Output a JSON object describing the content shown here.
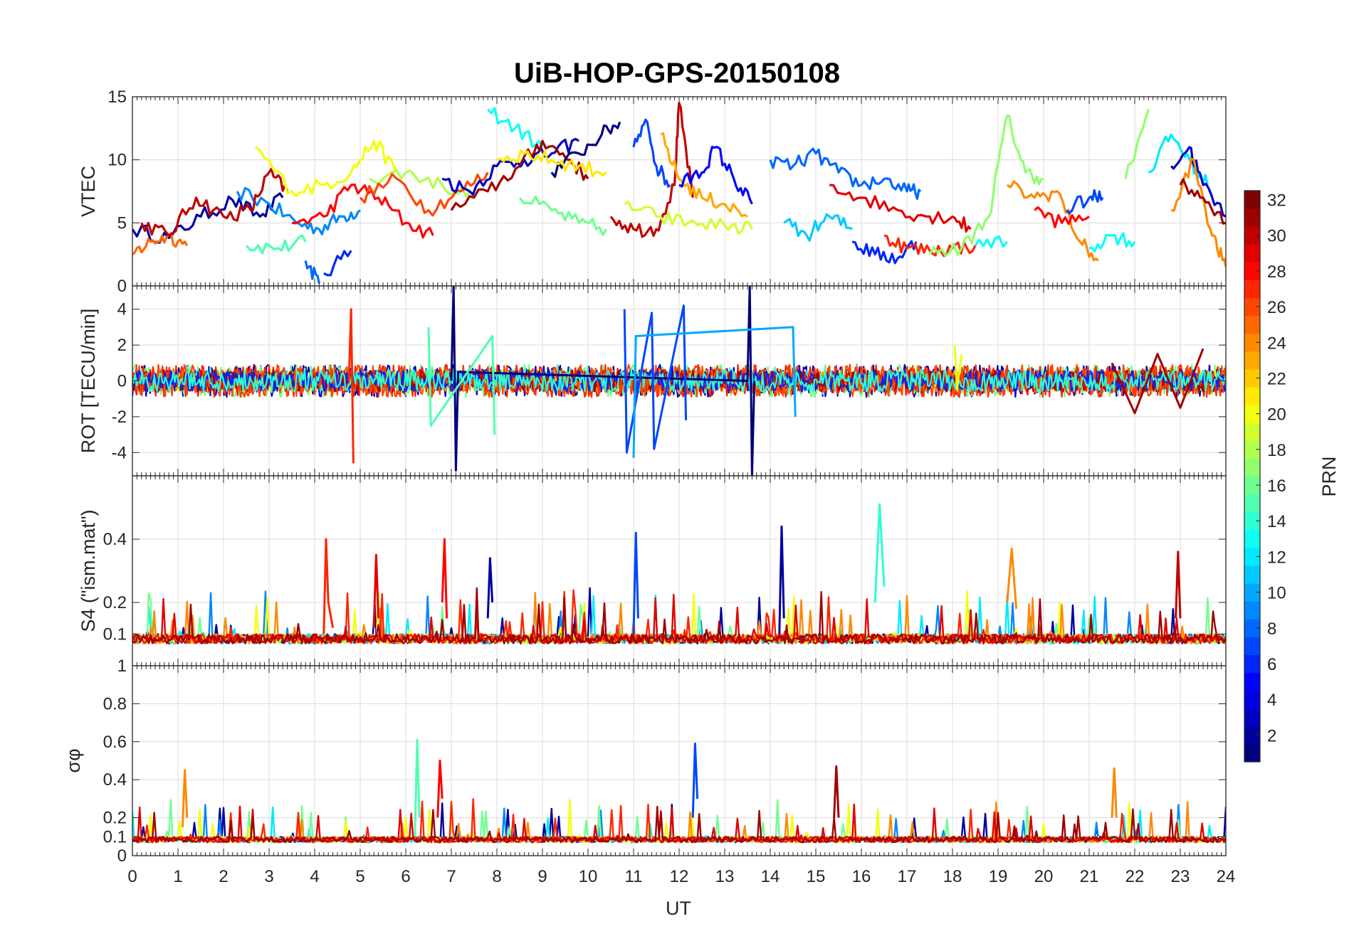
{
  "figure": {
    "title": "UiB-HOP-GPS-20150108",
    "xlabel": "UT",
    "x_ticks": [
      "0",
      "1",
      "2",
      "3",
      "4",
      "5",
      "6",
      "7",
      "8",
      "9",
      "10",
      "11",
      "12",
      "13",
      "14",
      "15",
      "16",
      "17",
      "18",
      "19",
      "20",
      "21",
      "22",
      "23",
      "24"
    ]
  },
  "colorbar": {
    "label": "PRN",
    "range": [
      1,
      32
    ],
    "ticks": [
      "2",
      "4",
      "6",
      "8",
      "10",
      "12",
      "14",
      "16",
      "18",
      "20",
      "22",
      "24",
      "26",
      "28",
      "30",
      "32"
    ],
    "colormap": "jet"
  },
  "chart_data": [
    {
      "type": "line",
      "panel": "vtec",
      "ylabel": "VTEC",
      "xlim": [
        0,
        24
      ],
      "ylim": [
        0,
        15
      ],
      "y_ticks": [
        0,
        5,
        10,
        15
      ],
      "grid": true,
      "series_color_by": "PRN",
      "series": [
        {
          "prn": 2,
          "x": [
            0.0,
            0.8,
            1.5,
            2.2,
            2.8,
            3.3
          ],
          "y": [
            4.5,
            3.8,
            5.5,
            6.8,
            5.5,
            7.0
          ]
        },
        {
          "prn": 9,
          "x": [
            2.3,
            3.0,
            3.6,
            4.1,
            4.6,
            5.0
          ],
          "y": [
            7.5,
            6.5,
            5.0,
            4.5,
            5.5,
            6.0
          ]
        },
        {
          "prn": 15,
          "x": [
            2.5,
            3.2,
            3.8
          ],
          "y": [
            3.2,
            3.0,
            3.5
          ]
        },
        {
          "prn": 25,
          "x": [
            0.0,
            0.4,
            0.8,
            1.2
          ],
          "y": [
            2.5,
            3.5,
            4.0,
            3.2
          ]
        },
        {
          "prn": 30,
          "x": [
            0.2,
            0.8,
            1.4,
            2.0,
            2.6,
            3.0,
            3.4
          ],
          "y": [
            5.0,
            4.0,
            7.0,
            5.5,
            6.0,
            9.0,
            7.5
          ]
        },
        {
          "prn": 20,
          "x": [
            2.7,
            3.5,
            4.2,
            4.8,
            5.3,
            5.8
          ],
          "y": [
            11.0,
            7.5,
            8.0,
            9.0,
            11.5,
            9.0
          ]
        },
        {
          "prn": 28,
          "x": [
            3.5,
            4.2,
            4.8,
            5.4,
            6.0,
            6.6
          ],
          "y": [
            5.0,
            5.5,
            8.0,
            7.0,
            5.0,
            4.0
          ]
        },
        {
          "prn": 8,
          "x": [
            3.8,
            4.1
          ],
          "y": [
            2.0,
            0.2
          ]
        },
        {
          "prn": 6,
          "x": [
            4.2,
            4.8
          ],
          "y": [
            1.0,
            2.8
          ]
        },
        {
          "prn": 18,
          "x": [
            5.2,
            6.0,
            6.8,
            7.5
          ],
          "y": [
            8.5,
            9.0,
            8.0,
            7.0
          ]
        },
        {
          "prn": 26,
          "x": [
            5.0,
            5.8,
            6.5,
            7.2,
            7.8
          ],
          "y": [
            7.0,
            8.5,
            6.0,
            7.5,
            9.0
          ]
        },
        {
          "prn": 3,
          "x": [
            6.8,
            7.4,
            8.0,
            8.6,
            9.2,
            9.8
          ],
          "y": [
            8.5,
            7.5,
            9.5,
            10.0,
            10.5,
            11.5
          ]
        },
        {
          "prn": 13,
          "x": [
            7.8,
            8.4,
            9.0
          ],
          "y": [
            14.0,
            12.5,
            11.0
          ]
        },
        {
          "prn": 31,
          "x": [
            7.0,
            7.8,
            8.5,
            9.0,
            9.6,
            10.0
          ],
          "y": [
            6.0,
            7.5,
            9.5,
            11.5,
            10.0,
            8.5
          ]
        },
        {
          "prn": 1,
          "x": [
            9.2,
            9.8,
            10.3,
            10.7
          ],
          "y": [
            9.0,
            10.5,
            12.0,
            13.0
          ]
        },
        {
          "prn": 21,
          "x": [
            8.0,
            8.6,
            9.2,
            9.8,
            10.4
          ],
          "y": [
            10.0,
            10.5,
            10.0,
            9.5,
            9.0
          ]
        },
        {
          "prn": 16,
          "x": [
            8.5,
            9.2,
            9.8,
            10.4
          ],
          "y": [
            7.0,
            6.0,
            5.0,
            4.5
          ]
        },
        {
          "prn": 7,
          "x": [
            11.0,
            11.3,
            11.5,
            11.8
          ],
          "y": [
            11.0,
            13.0,
            9.5,
            8.0
          ]
        },
        {
          "prn": 30,
          "x": [
            10.5,
            11.0,
            11.5,
            11.9,
            12.0,
            12.3
          ],
          "y": [
            5.5,
            4.5,
            4.5,
            8.0,
            14.5,
            7.0
          ]
        },
        {
          "prn": 23,
          "x": [
            11.6,
            12.0,
            12.5,
            13.0,
            13.5
          ],
          "y": [
            12.0,
            8.5,
            7.0,
            6.5,
            5.5
          ]
        },
        {
          "prn": 5,
          "x": [
            12.0,
            12.5,
            12.8,
            13.2,
            13.6
          ],
          "y": [
            8.0,
            9.0,
            11.0,
            8.5,
            6.5
          ]
        },
        {
          "prn": 19,
          "x": [
            10.8,
            11.5,
            12.2,
            13.0,
            13.6
          ],
          "y": [
            6.5,
            5.5,
            5.0,
            4.8,
            4.5
          ]
        },
        {
          "prn": 8,
          "x": [
            14.0,
            14.5,
            15.0,
            15.5,
            16.0,
            16.5,
            17.0,
            17.3
          ],
          "y": [
            10.0,
            9.5,
            10.5,
            9.0,
            8.0,
            8.5,
            7.5,
            7.5
          ]
        },
        {
          "prn": 11,
          "x": [
            14.3,
            14.8,
            15.3,
            15.8
          ],
          "y": [
            5.0,
            4.0,
            5.5,
            4.5
          ]
        },
        {
          "prn": 29,
          "x": [
            15.3,
            16.0,
            16.8,
            17.5,
            18.0,
            18.4
          ],
          "y": [
            8.0,
            7.0,
            6.0,
            5.5,
            5.5,
            4.5
          ]
        },
        {
          "prn": 6,
          "x": [
            15.8,
            16.3,
            16.8,
            17.2
          ],
          "y": [
            3.5,
            2.5,
            2.2,
            3.5
          ]
        },
        {
          "prn": 27,
          "x": [
            16.5,
            17.0,
            17.5,
            18.0,
            18.5
          ],
          "y": [
            4.0,
            3.0,
            2.8,
            3.0,
            3.2
          ]
        },
        {
          "prn": 17,
          "x": [
            17.5,
            18.2,
            18.8,
            19.2,
            19.6,
            20.0
          ],
          "y": [
            2.5,
            3.0,
            5.5,
            13.5,
            9.0,
            8.5
          ]
        },
        {
          "prn": 13,
          "x": [
            18.5,
            19.2
          ],
          "y": [
            3.2,
            3.5
          ]
        },
        {
          "prn": 24,
          "x": [
            19.2,
            19.8,
            20.3,
            20.8,
            21.2
          ],
          "y": [
            8.0,
            7.0,
            7.5,
            3.5,
            2.0
          ]
        },
        {
          "prn": 28,
          "x": [
            19.8,
            20.4,
            21.0
          ],
          "y": [
            6.0,
            5.0,
            5.5
          ]
        },
        {
          "prn": 7,
          "x": [
            20.5,
            21.0,
            21.3
          ],
          "y": [
            6.0,
            7.0,
            7.0
          ]
        },
        {
          "prn": 13,
          "x": [
            21.0,
            21.5,
            22.0
          ],
          "y": [
            3.0,
            4.0,
            3.5
          ]
        },
        {
          "prn": 17,
          "x": [
            21.8,
            22.3
          ],
          "y": [
            8.5,
            14.0
          ]
        },
        {
          "prn": 12,
          "x": [
            22.3,
            22.8,
            23.2,
            23.6
          ],
          "y": [
            9.0,
            12.0,
            10.0,
            8.0
          ]
        },
        {
          "prn": 3,
          "x": [
            22.8,
            23.2,
            23.5,
            24.0
          ],
          "y": [
            9.5,
            11.0,
            8.0,
            5.5
          ]
        },
        {
          "prn": 24,
          "x": [
            22.8,
            23.3,
            23.7,
            24.0
          ],
          "y": [
            6.0,
            10.0,
            4.0,
            1.5
          ]
        },
        {
          "prn": 31,
          "x": [
            23.0,
            23.5,
            24.0
          ],
          "y": [
            8.0,
            7.0,
            5.0
          ]
        }
      ]
    },
    {
      "type": "line",
      "panel": "rot",
      "ylabel": "ROT [TECU/min]",
      "xlim": [
        0,
        24
      ],
      "ylim": [
        -5.3,
        5.3
      ],
      "y_ticks": [
        -4,
        -2,
        0,
        2,
        4
      ],
      "grid": true,
      "series_color_by": "PRN",
      "series": [
        {
          "prn": 1,
          "x": [
            7.0,
            7.05,
            7.1,
            7.15,
            13.5,
            13.55,
            13.6,
            13.65
          ],
          "y": [
            0,
            5.3,
            -5.0,
            0.5,
            0,
            5.3,
            -5.3,
            0
          ]
        },
        {
          "prn": 27,
          "x": [
            4.75,
            4.8,
            4.85
          ],
          "y": [
            0,
            4.0,
            -4.6
          ]
        },
        {
          "prn": 7,
          "x": [
            10.8,
            10.85,
            11.4,
            11.45,
            12.1,
            12.15
          ],
          "y": [
            4.0,
            -4.0,
            3.8,
            -3.8,
            4.2,
            -2.2
          ]
        },
        {
          "prn": 10,
          "x": [
            11.0,
            11.05,
            14.5,
            14.55
          ],
          "y": [
            -4.3,
            2.5,
            3.0,
            -2.0
          ]
        },
        {
          "prn": 15,
          "x": [
            6.5,
            6.55,
            7.9,
            7.95
          ],
          "y": [
            3.0,
            -2.5,
            2.5,
            -3.0
          ]
        },
        {
          "prn": 20,
          "x": [
            18.05,
            18.1,
            18.2
          ],
          "y": [
            2.0,
            -0.5,
            1.5
          ]
        },
        {
          "prn": 31,
          "x": [
            21.5,
            22.0,
            22.5,
            23.0,
            23.5
          ],
          "y": [
            1.0,
            -1.8,
            1.5,
            -1.5,
            1.8
          ]
        }
      ],
      "note_noise_band_amplitude": 1.2
    },
    {
      "type": "line",
      "panel": "s4",
      "ylabel": "S4 (\"ism.mat\")",
      "xlim": [
        0,
        24
      ],
      "ylim": [
        0,
        0.6
      ],
      "y_ticks": [
        0.1,
        0.2,
        0.4
      ],
      "grid": true,
      "series_color_by": "PRN",
      "series": [
        {
          "prn": 27,
          "x": [
            4.2,
            4.25,
            4.3,
            4.4
          ],
          "y": [
            0.1,
            0.4,
            0.2,
            0.12
          ]
        },
        {
          "prn": 29,
          "x": [
            5.3,
            5.35,
            5.4
          ],
          "y": [
            0.12,
            0.35,
            0.15
          ]
        },
        {
          "prn": 28,
          "x": [
            6.8,
            6.85,
            6.9
          ],
          "y": [
            0.2,
            0.4,
            0.15
          ]
        },
        {
          "prn": 2,
          "x": [
            7.8,
            7.85,
            7.9
          ],
          "y": [
            0.15,
            0.34,
            0.2
          ]
        },
        {
          "prn": 7,
          "x": [
            11.0,
            11.05,
            11.1
          ],
          "y": [
            0.1,
            0.42,
            0.15
          ]
        },
        {
          "prn": 2,
          "x": [
            14.2,
            14.25,
            14.3
          ],
          "y": [
            0.1,
            0.44,
            0.15
          ]
        },
        {
          "prn": 14,
          "x": [
            16.3,
            16.4,
            16.5
          ],
          "y": [
            0.2,
            0.51,
            0.25
          ]
        },
        {
          "prn": 24,
          "x": [
            19.2,
            19.3,
            19.4
          ],
          "y": [
            0.2,
            0.37,
            0.18
          ]
        },
        {
          "prn": 30,
          "x": [
            22.9,
            22.95,
            23.0
          ],
          "y": [
            0.15,
            0.36,
            0.15
          ]
        }
      ],
      "baseline": 0.07
    },
    {
      "type": "line",
      "panel": "sigma_phi",
      "ylabel": "σφ",
      "xlim": [
        0,
        24
      ],
      "ylim": [
        0,
        1
      ],
      "y_ticks": [
        0,
        0.1,
        0.2,
        0.4,
        0.6,
        0.8,
        1
      ],
      "grid": true,
      "series_color_by": "PRN",
      "series": [
        {
          "prn": 15,
          "x": [
            6.2,
            6.25,
            6.3
          ],
          "y": [
            0.1,
            0.61,
            0.2
          ]
        },
        {
          "prn": 7,
          "x": [
            12.3,
            12.35,
            12.4
          ],
          "y": [
            0.2,
            0.59,
            0.3
          ]
        },
        {
          "prn": 24,
          "x": [
            1.1,
            1.15,
            1.2
          ],
          "y": [
            0.15,
            0.45,
            0.2
          ]
        },
        {
          "prn": 28,
          "x": [
            6.7,
            6.75,
            6.8
          ],
          "y": [
            0.2,
            0.5,
            0.3
          ]
        },
        {
          "prn": 31,
          "x": [
            15.4,
            15.45,
            15.5
          ],
          "y": [
            0.2,
            0.47,
            0.2
          ]
        },
        {
          "prn": 24,
          "x": [
            21.5,
            21.55,
            21.6
          ],
          "y": [
            0.2,
            0.46,
            0.2
          ]
        }
      ],
      "baseline": 0.07
    }
  ]
}
